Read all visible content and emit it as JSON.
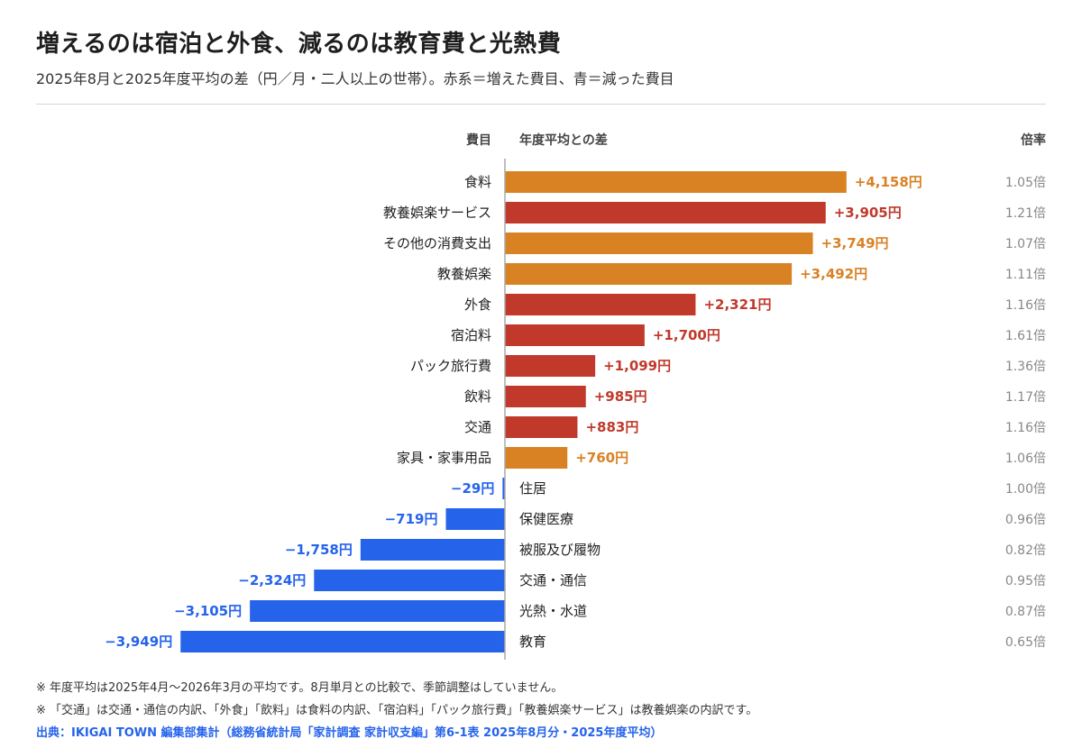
{
  "header": {
    "title": "増えるのは宿泊と外食、減るのは教育費と光熱費",
    "subtitle": "2025年8月と2025年度平均の差（円／月・二人以上の世帯）。赤系＝増えた費目、青＝減った費目"
  },
  "chart_data": {
    "type": "bar",
    "orientation": "horizontal",
    "column_headers": {
      "category": "費目",
      "value": "年度平均との差",
      "ratio": "倍率"
    },
    "unit": "円",
    "xlim": [
      -4000,
      4200
    ],
    "colors": {
      "increase_red": "#c0392b",
      "increase_orange": "#d98224",
      "decrease": "#2563eb",
      "ratio_text": "#888888",
      "axis": "#aaaaaa"
    },
    "rows": [
      {
        "label": "食料",
        "value": 4158,
        "value_label": "+4,158円",
        "ratio": "1.05倍",
        "color": "orange"
      },
      {
        "label": "教養娯楽サービス",
        "value": 3905,
        "value_label": "+3,905円",
        "ratio": "1.21倍",
        "color": "red"
      },
      {
        "label": "その他の消費支出",
        "value": 3749,
        "value_label": "+3,749円",
        "ratio": "1.07倍",
        "color": "orange"
      },
      {
        "label": "教養娯楽",
        "value": 3492,
        "value_label": "+3,492円",
        "ratio": "1.11倍",
        "color": "orange"
      },
      {
        "label": "外食",
        "value": 2321,
        "value_label": "+2,321円",
        "ratio": "1.16倍",
        "color": "red"
      },
      {
        "label": "宿泊料",
        "value": 1700,
        "value_label": "+1,700円",
        "ratio": "1.61倍",
        "color": "red"
      },
      {
        "label": "パック旅行費",
        "value": 1099,
        "value_label": "+1,099円",
        "ratio": "1.36倍",
        "color": "red"
      },
      {
        "label": "飲料",
        "value": 985,
        "value_label": "+985円",
        "ratio": "1.17倍",
        "color": "red"
      },
      {
        "label": "交通",
        "value": 883,
        "value_label": "+883円",
        "ratio": "1.16倍",
        "color": "red"
      },
      {
        "label": "家具・家事用品",
        "value": 760,
        "value_label": "+760円",
        "ratio": "1.06倍",
        "color": "orange"
      },
      {
        "label": "住居",
        "value": -29,
        "value_label": "−29円",
        "ratio": "1.00倍",
        "color": "blue"
      },
      {
        "label": "保健医療",
        "value": -719,
        "value_label": "−719円",
        "ratio": "0.96倍",
        "color": "blue"
      },
      {
        "label": "被服及び履物",
        "value": -1758,
        "value_label": "−1,758円",
        "ratio": "0.82倍",
        "color": "blue"
      },
      {
        "label": "交通・通信",
        "value": -2324,
        "value_label": "−2,324円",
        "ratio": "0.95倍",
        "color": "blue"
      },
      {
        "label": "光熱・水道",
        "value": -3105,
        "value_label": "−3,105円",
        "ratio": "0.87倍",
        "color": "blue"
      },
      {
        "label": "教育",
        "value": -3949,
        "value_label": "−3,949円",
        "ratio": "0.65倍",
        "color": "blue"
      }
    ]
  },
  "footer": {
    "note1": "※ 年度平均は2025年4月〜2026年3月の平均です。8月単月との比較で、季節調整はしていません。",
    "note2": "※ 「交通」は交通・通信の内訳、「外食」「飲料」は食料の内訳、「宿泊料」「パック旅行費」「教養娯楽サービス」は教養娯楽の内訳です。",
    "source": "出典：IKIGAI TOWN 編集部集計（総務省統計局「家計調査 家計収支編」第6-1表 2025年8月分・2025年度平均）"
  }
}
